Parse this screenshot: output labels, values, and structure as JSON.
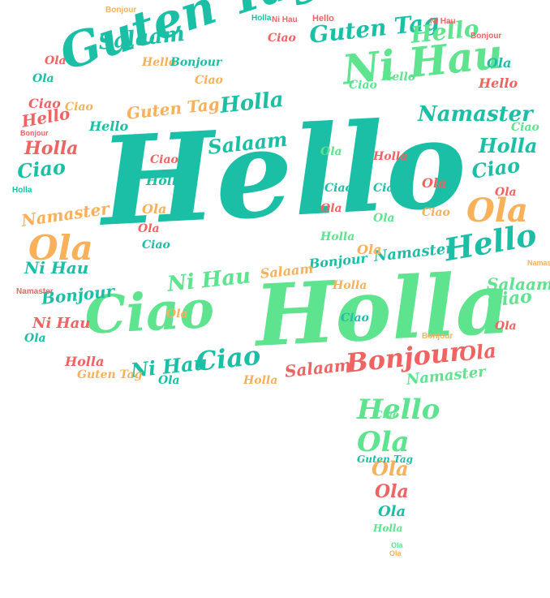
{
  "palette": {
    "teal": "#1bbfa6",
    "green": "#5ee38e",
    "orange": "#f8b15a",
    "red": "#ef6363",
    "background": "#ffffff"
  },
  "words": {
    "hello": "Hello",
    "holla": "Holla",
    "ciao": "Ciao",
    "guten_tag": "Guten Tag",
    "ni_hau": "Ni Hau",
    "namaster": "Namaster",
    "bonjour": "Bonjour",
    "salaam": "Salaam",
    "ola": "Ola"
  }
}
